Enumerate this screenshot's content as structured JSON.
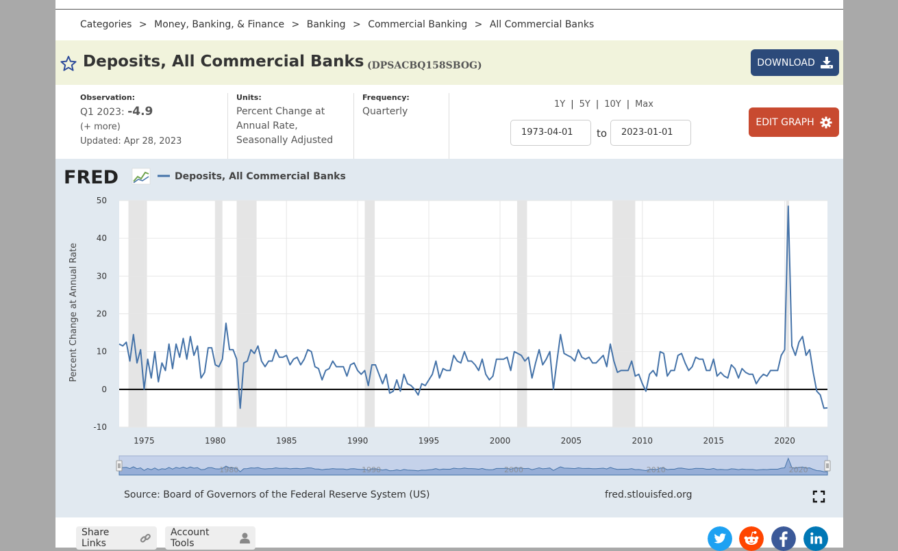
{
  "breadcrumb": [
    "Categories",
    "Money, Banking, & Finance",
    "Banking",
    "Commercial Banking",
    "All Commercial Banks"
  ],
  "breadcrumb_sep": ">",
  "title": "Deposits, All Commercial Banks",
  "series_id": "(DPSACBQ158SBOG)",
  "download_label": "DOWNLOAD",
  "observation": {
    "label": "Observation:",
    "period": "Q1 2023:",
    "value": "-4.9",
    "more": "(+ more)",
    "updated": "Updated: Apr 28, 2023"
  },
  "units": {
    "label": "Units:",
    "value": "Percent Change at Annual Rate, Seasonally Adjusted"
  },
  "frequency": {
    "label": "Frequency:",
    "value": "Quarterly"
  },
  "range_links": [
    "1Y",
    "5Y",
    "10Y",
    "Max"
  ],
  "date_from": "1973-04-01",
  "date_to": "2023-01-01",
  "to_label": "to",
  "edit_label": "EDIT GRAPH",
  "chart_data": {
    "type": "line",
    "logo": "FRED",
    "legend": "Deposits, All Commercial Banks",
    "ylabel": "Percent Change at Annual Rate",
    "xlim": [
      1973.25,
      2023.0
    ],
    "ylim": [
      -10,
      50
    ],
    "yticks": [
      -10,
      0,
      10,
      20,
      30,
      40,
      50
    ],
    "xticks": [
      1975,
      1980,
      1985,
      1990,
      1995,
      2000,
      2005,
      2010,
      2015,
      2020
    ],
    "grid": true,
    "legend_position": "top-left",
    "series_color": "#4472a8",
    "recessions": [
      [
        1973.9,
        1975.2
      ],
      [
        1980.0,
        1980.5
      ],
      [
        1981.5,
        1982.9
      ],
      [
        1990.5,
        1991.2
      ],
      [
        2001.2,
        2001.9
      ],
      [
        2007.9,
        2009.5
      ],
      [
        2020.1,
        2020.3
      ]
    ],
    "x": [
      1973.25,
      1973.5,
      1973.75,
      1974.0,
      1974.25,
      1974.5,
      1974.75,
      1975.0,
      1975.25,
      1975.5,
      1975.75,
      1976.0,
      1976.25,
      1976.5,
      1976.75,
      1977.0,
      1977.25,
      1977.5,
      1977.75,
      1978.0,
      1978.25,
      1978.5,
      1978.75,
      1979.0,
      1979.25,
      1979.5,
      1979.75,
      1980.0,
      1980.25,
      1980.5,
      1980.75,
      1981.0,
      1981.25,
      1981.5,
      1981.75,
      1982.0,
      1982.25,
      1982.5,
      1982.75,
      1983.0,
      1983.25,
      1983.5,
      1983.75,
      1984.0,
      1984.25,
      1984.5,
      1984.75,
      1985.0,
      1985.25,
      1985.5,
      1985.75,
      1986.0,
      1986.25,
      1986.5,
      1986.75,
      1987.0,
      1987.25,
      1987.5,
      1987.75,
      1988.0,
      1988.25,
      1988.5,
      1988.75,
      1989.0,
      1989.25,
      1989.5,
      1989.75,
      1990.0,
      1990.25,
      1990.5,
      1990.75,
      1991.0,
      1991.25,
      1991.5,
      1991.75,
      1992.0,
      1992.25,
      1992.5,
      1992.75,
      1993.0,
      1993.25,
      1993.5,
      1993.75,
      1994.0,
      1994.25,
      1994.5,
      1994.75,
      1995.0,
      1995.25,
      1995.5,
      1995.75,
      1996.0,
      1996.25,
      1996.5,
      1996.75,
      1997.0,
      1997.25,
      1997.5,
      1997.75,
      1998.0,
      1998.25,
      1998.5,
      1998.75,
      1999.0,
      1999.25,
      1999.5,
      1999.75,
      2000.0,
      2000.25,
      2000.5,
      2000.75,
      2001.0,
      2001.25,
      2001.5,
      2001.75,
      2002.0,
      2002.25,
      2002.5,
      2002.75,
      2003.0,
      2003.25,
      2003.5,
      2003.75,
      2004.0,
      2004.25,
      2004.5,
      2004.75,
      2005.0,
      2005.25,
      2005.5,
      2005.75,
      2006.0,
      2006.25,
      2006.5,
      2006.75,
      2007.0,
      2007.25,
      2007.5,
      2007.75,
      2008.0,
      2008.25,
      2008.5,
      2008.75,
      2009.0,
      2009.25,
      2009.5,
      2009.75,
      2010.0,
      2010.25,
      2010.5,
      2010.75,
      2011.0,
      2011.25,
      2011.5,
      2011.75,
      2012.0,
      2012.25,
      2012.5,
      2012.75,
      2013.0,
      2013.25,
      2013.5,
      2013.75,
      2014.0,
      2014.25,
      2014.5,
      2014.75,
      2015.0,
      2015.25,
      2015.5,
      2015.75,
      2016.0,
      2016.25,
      2016.5,
      2016.75,
      2017.0,
      2017.25,
      2017.5,
      2017.75,
      2018.0,
      2018.25,
      2018.5,
      2018.75,
      2019.0,
      2019.25,
      2019.5,
      2019.75,
      2020.0,
      2020.25,
      2020.5,
      2020.75,
      2021.0,
      2021.25,
      2021.5,
      2021.75,
      2022.0,
      2022.25,
      2022.5,
      2022.75,
      2023.0
    ],
    "values": [
      12,
      11.5,
      12.5,
      7.5,
      14.5,
      7,
      10.5,
      0,
      8,
      3,
      10,
      2,
      7,
      5,
      12,
      5.5,
      12,
      8.5,
      13.5,
      8,
      14,
      9,
      11.5,
      3,
      4.5,
      11,
      11,
      6.5,
      6,
      8,
      17.5,
      10.5,
      10.5,
      8,
      -5,
      7,
      7.5,
      10.5,
      9.5,
      11.5,
      7.5,
      6,
      7.5,
      7.5,
      10.5,
      8.5,
      8.5,
      9,
      6.5,
      8,
      8.5,
      6.5,
      8,
      10.5,
      10,
      6,
      5.5,
      2.5,
      5,
      5.5,
      7.5,
      6,
      6,
      6,
      3.5,
      6.5,
      7,
      5,
      4,
      5,
      1,
      6.5,
      6.5,
      4,
      1.5,
      4,
      -1,
      -0.5,
      2.5,
      -0.5,
      4,
      1.5,
      1,
      0,
      -1.5,
      1.5,
      1,
      2.5,
      4,
      7.5,
      3,
      5.5,
      5,
      5,
      9,
      7.5,
      7,
      10,
      7.5,
      7.5,
      6.5,
      5,
      8,
      4,
      2.5,
      3.5,
      8,
      8,
      8,
      8.5,
      5,
      10,
      9.5,
      9,
      7.5,
      8.5,
      3,
      7,
      10.5,
      6.5,
      8,
      10,
      0,
      7.5,
      14.5,
      9.5,
      9,
      8.5,
      7.5,
      10.5,
      8.5,
      8,
      8.5,
      7,
      7,
      8,
      9,
      6,
      12,
      7.5,
      4.5,
      5,
      5,
      5,
      7.5,
      3.5,
      4,
      1.5,
      -0.5,
      4,
      5,
      3.5,
      10,
      9.5,
      3.5,
      5,
      5,
      9,
      9.5,
      7,
      5,
      6,
      8.5,
      8,
      8,
      5,
      5,
      8,
      3.5,
      4.5,
      3.5,
      3,
      6.5,
      5.5,
      3,
      5.5,
      4.5,
      4,
      4,
      1.5,
      3,
      4,
      3.5,
      5,
      5,
      5,
      9,
      10.5,
      48.5,
      11.5,
      9,
      12.5,
      14,
      9,
      10.5,
      4.5,
      -0.5,
      -1.5,
      -5,
      -4.9
    ]
  },
  "source": "Source: Board of Governors of the Federal Reserve System (US)",
  "site": "fred.stlouisfed.org",
  "nav_years": [
    "1980",
    "1990",
    "2000",
    "2010",
    "2020"
  ],
  "share_links_label": "Share Links",
  "account_tools_label": "Account Tools",
  "icons": {
    "star": "star-icon",
    "download": "download-icon",
    "gear": "gear-icon",
    "fullscreen": "fullscreen-icon",
    "link": "link-icon",
    "user": "user-icon",
    "twitter": "twitter-icon",
    "reddit": "reddit-icon",
    "facebook": "facebook-icon",
    "linkedin": "linkedin-icon"
  },
  "colors": {
    "accent_blue": "#2c4a7a",
    "edit_red": "#c84a30",
    "twitter": "#1da1f2",
    "reddit": "#ff4500",
    "facebook": "#3b5998",
    "linkedin": "#0077b5"
  }
}
